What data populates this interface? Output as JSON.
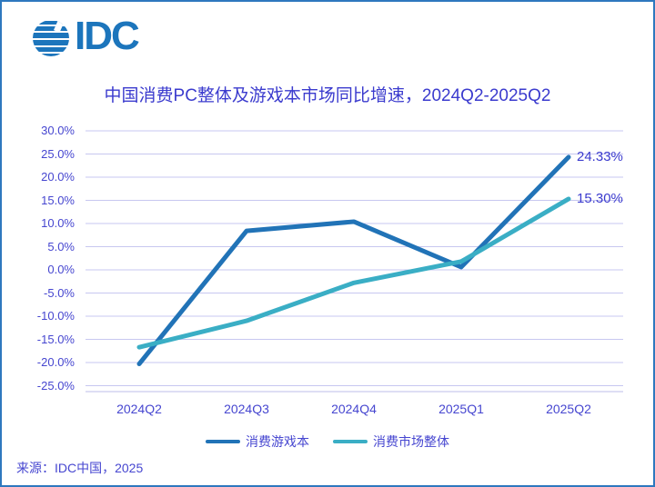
{
  "page": {
    "border_color": "#2E78BE",
    "background": "#FFFFFF"
  },
  "logo": {
    "text": "IDC",
    "color": "#1C75BC"
  },
  "title": {
    "text": "中国消费PC整体及游戏本市场同比增速，2024Q2-2025Q2"
  },
  "source": {
    "text": "来源：IDC中国，2025"
  },
  "chart_data": {
    "type": "line",
    "title": "中国消费PC整体及游戏本市场同比增速，2024Q2-2025Q2",
    "categories": [
      "2024Q2",
      "2024Q3",
      "2024Q4",
      "2025Q1",
      "2025Q2"
    ],
    "series": [
      {
        "name": "消费游戏本",
        "color": "#2173B7",
        "values": [
          -20.3,
          8.4,
          10.4,
          0.6,
          24.33
        ],
        "end_label": "24.33%"
      },
      {
        "name": "消费市场整体",
        "color": "#3AAEC5",
        "values": [
          -16.7,
          -11.0,
          -2.8,
          1.8,
          15.3
        ],
        "end_label": "15.30%"
      }
    ],
    "y_ticks": [
      {
        "v": 30,
        "label": "30.0%"
      },
      {
        "v": 25,
        "label": "25.0%"
      },
      {
        "v": 20,
        "label": "20.0%"
      },
      {
        "v": 15,
        "label": "15.0%"
      },
      {
        "v": 10,
        "label": "10.0%"
      },
      {
        "v": 5,
        "label": "5.0%"
      },
      {
        "v": 0,
        "label": "0.0%"
      },
      {
        "v": -5,
        "label": "-5.0%"
      },
      {
        "v": -10,
        "label": "-10.0%"
      },
      {
        "v": -15,
        "label": "-15.0%"
      },
      {
        "v": -20,
        "label": "-20.0%"
      },
      {
        "v": -25,
        "label": "-25.0%"
      }
    ],
    "ylim": [
      -25,
      30
    ],
    "grid": true,
    "legend_position": "bottom",
    "axis_label_color": "#4646D0",
    "gridline_color": "#C7C7F0",
    "axis_line_color": "#BDBDE8"
  }
}
